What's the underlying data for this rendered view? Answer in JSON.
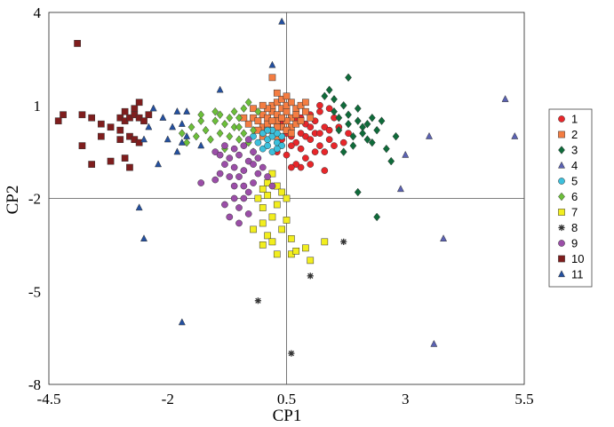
{
  "chart_data": {
    "type": "scatter",
    "xlabel": "CP1",
    "ylabel": "CP2",
    "xlim": [
      -4.5,
      5.5
    ],
    "ylim": [
      -8,
      4
    ],
    "xticks": [
      -4.5,
      -2,
      0.5,
      3,
      5.5
    ],
    "yticks": [
      -8,
      -5,
      -2,
      1,
      4
    ],
    "xtick_labels": [
      "-4.5",
      "-2",
      "0.5",
      "3",
      "5.5"
    ],
    "ytick_labels": [
      "-8",
      "-5",
      "-2",
      "1",
      "4"
    ],
    "reference_lines": {
      "x": 0.5,
      "y": -2
    },
    "grid": false,
    "legend_position": "right",
    "series": [
      {
        "name": "1",
        "marker": "circle",
        "color": "#e8262a",
        "points": [
          [
            0.6,
            0.3
          ],
          [
            0.7,
            0.5
          ],
          [
            0.8,
            0.6
          ],
          [
            0.9,
            0.4
          ],
          [
            1.0,
            0.7
          ],
          [
            1.1,
            0.5
          ],
          [
            1.2,
            0.8
          ],
          [
            1.3,
            0.3
          ],
          [
            0.9,
            0.0
          ],
          [
            1.0,
            -0.1
          ],
          [
            1.1,
            0.1
          ],
          [
            0.7,
            -0.2
          ],
          [
            0.8,
            -0.4
          ],
          [
            0.6,
            -0.3
          ],
          [
            1.2,
            -0.3
          ],
          [
            1.3,
            -0.5
          ],
          [
            1.4,
            0.2
          ],
          [
            1.5,
            0.6
          ],
          [
            1.4,
            0.9
          ],
          [
            1.6,
            0.3
          ],
          [
            1.2,
            0.1
          ],
          [
            0.5,
            0.1
          ],
          [
            0.4,
            -0.1
          ],
          [
            0.6,
            0.0
          ],
          [
            0.9,
            -0.7
          ],
          [
            1.0,
            -0.9
          ],
          [
            0.8,
            -1.0
          ],
          [
            1.1,
            -0.5
          ],
          [
            0.7,
            -0.9
          ],
          [
            1.3,
            -1.1
          ],
          [
            1.5,
            -0.3
          ],
          [
            1.7,
            -0.2
          ],
          [
            1.8,
            0.1
          ],
          [
            1.2,
            1.0
          ],
          [
            0.9,
            0.8
          ],
          [
            0.3,
            -0.5
          ],
          [
            0.5,
            -0.6
          ],
          [
            0.6,
            -1.0
          ],
          [
            1.0,
            0.3
          ],
          [
            1.4,
            -0.1
          ],
          [
            0.4,
            0.4
          ],
          [
            0.8,
            0.1
          ]
        ]
      },
      {
        "name": "2",
        "marker": "square",
        "color": "#f47d42",
        "points": [
          [
            -0.2,
            0.6
          ],
          [
            -0.1,
            0.5
          ],
          [
            0.0,
            0.7
          ],
          [
            0.1,
            0.6
          ],
          [
            0.2,
            0.8
          ],
          [
            0.3,
            0.7
          ],
          [
            0.4,
            0.9
          ],
          [
            0.5,
            0.8
          ],
          [
            0.6,
            0.6
          ],
          [
            0.7,
            0.9
          ],
          [
            0.8,
            1.0
          ],
          [
            0.9,
            0.8
          ],
          [
            0.0,
            0.3
          ],
          [
            0.1,
            0.4
          ],
          [
            0.2,
            0.2
          ],
          [
            0.3,
            0.5
          ],
          [
            0.4,
            0.3
          ],
          [
            0.5,
            0.5
          ],
          [
            0.6,
            0.3
          ],
          [
            0.7,
            0.4
          ],
          [
            0.8,
            0.5
          ],
          [
            0.2,
            1.0
          ],
          [
            0.3,
            1.1
          ],
          [
            0.4,
            1.2
          ],
          [
            0.5,
            1.0
          ],
          [
            -0.3,
            0.4
          ],
          [
            -0.4,
            0.6
          ],
          [
            0.1,
            0.9
          ],
          [
            0.6,
            1.1
          ],
          [
            0.7,
            0.7
          ],
          [
            0.2,
            0.5
          ],
          [
            0.4,
            0.6
          ],
          [
            0.3,
            0.3
          ],
          [
            0.5,
            0.2
          ],
          [
            0.1,
            0.2
          ],
          [
            -0.1,
            0.2
          ],
          [
            0.0,
            0.0
          ],
          [
            0.3,
            0.0
          ],
          [
            1.0,
            0.6
          ],
          [
            0.9,
            1.1
          ],
          [
            0.5,
            1.3
          ],
          [
            0.3,
            1.4
          ],
          [
            0.0,
            1.0
          ],
          [
            -0.2,
            0.9
          ],
          [
            0.6,
            0.1
          ],
          [
            0.2,
            1.9
          ]
        ]
      },
      {
        "name": "3",
        "marker": "diamond",
        "color": "#0f6b3a",
        "points": [
          [
            1.5,
            1.2
          ],
          [
            1.7,
            1.0
          ],
          [
            1.8,
            0.7
          ],
          [
            2.0,
            0.5
          ],
          [
            2.1,
            0.3
          ],
          [
            1.9,
            0.0
          ],
          [
            1.6,
            0.2
          ],
          [
            1.4,
            1.5
          ],
          [
            1.8,
            1.9
          ],
          [
            1.3,
            1.3
          ],
          [
            2.2,
            0.4
          ],
          [
            2.4,
            0.2
          ],
          [
            2.3,
            0.6
          ],
          [
            2.5,
            0.5
          ],
          [
            2.0,
            0.9
          ],
          [
            1.6,
            0.6
          ],
          [
            1.9,
            -0.3
          ],
          [
            2.2,
            -0.1
          ],
          [
            2.6,
            -0.4
          ],
          [
            2.7,
            -0.8
          ],
          [
            2.0,
            -1.8
          ],
          [
            2.4,
            -2.6
          ],
          [
            1.7,
            -0.5
          ],
          [
            2.1,
            0.1
          ],
          [
            1.5,
            0.8
          ],
          [
            2.8,
            0.0
          ],
          [
            1.8,
            0.4
          ],
          [
            2.3,
            -0.2
          ]
        ]
      },
      {
        "name": "4",
        "marker": "triangle",
        "color": "#5b62b3",
        "points": [
          [
            5.1,
            1.2
          ],
          [
            5.3,
            0.0
          ],
          [
            3.5,
            0.0
          ],
          [
            3.0,
            -0.6
          ],
          [
            2.9,
            -1.7
          ],
          [
            3.8,
            -3.3
          ],
          [
            3.6,
            -6.7
          ]
        ]
      },
      {
        "name": "5",
        "marker": "circle",
        "color": "#3cc0dc",
        "points": [
          [
            0.0,
            0.1
          ],
          [
            0.1,
            -0.1
          ],
          [
            0.2,
            0.0
          ],
          [
            0.3,
            -0.2
          ],
          [
            0.4,
            0.0
          ],
          [
            0.0,
            -0.4
          ],
          [
            0.2,
            -0.5
          ],
          [
            0.1,
            -0.3
          ],
          [
            0.3,
            0.1
          ],
          [
            -0.1,
            -0.2
          ],
          [
            0.4,
            -0.3
          ],
          [
            0.2,
            0.2
          ],
          [
            -0.2,
            0.0
          ],
          [
            0.1,
            0.2
          ],
          [
            0.3,
            -0.4
          ]
        ]
      },
      {
        "name": "6",
        "marker": "diamond",
        "color": "#6cbf3a",
        "points": [
          [
            -1.5,
            0.3
          ],
          [
            -1.3,
            0.5
          ],
          [
            -1.2,
            0.2
          ],
          [
            -1.0,
            0.5
          ],
          [
            -0.9,
            0.1
          ],
          [
            -0.8,
            0.4
          ],
          [
            -0.7,
            0.0
          ],
          [
            -0.6,
            0.3
          ],
          [
            -0.5,
            0.6
          ],
          [
            -0.4,
            0.1
          ],
          [
            -0.3,
            -0.2
          ],
          [
            -0.2,
            0.2
          ],
          [
            -1.1,
            -0.1
          ],
          [
            -0.9,
            0.7
          ],
          [
            -0.6,
            0.8
          ],
          [
            -0.4,
            0.9
          ],
          [
            -0.3,
            1.1
          ],
          [
            -0.1,
            0.8
          ],
          [
            -1.4,
            0.0
          ],
          [
            -1.6,
            -0.2
          ],
          [
            -0.8,
            -0.4
          ],
          [
            -0.5,
            -0.1
          ],
          [
            -1.0,
            0.8
          ],
          [
            -0.2,
            -0.5
          ],
          [
            -1.3,
            0.7
          ],
          [
            -0.7,
            0.6
          ],
          [
            -0.5,
            0.3
          ],
          [
            -1.7,
            0.1
          ]
        ]
      },
      {
        "name": "7",
        "marker": "square",
        "color": "#f2ee1e",
        "points": [
          [
            -0.1,
            -2.0
          ],
          [
            0.0,
            -2.3
          ],
          [
            0.1,
            -1.9
          ],
          [
            0.2,
            -2.6
          ],
          [
            0.3,
            -2.2
          ],
          [
            0.0,
            -2.8
          ],
          [
            -0.2,
            -3.0
          ],
          [
            0.1,
            -3.2
          ],
          [
            0.2,
            -3.4
          ],
          [
            0.4,
            -3.0
          ],
          [
            0.5,
            -2.7
          ],
          [
            0.0,
            -3.5
          ],
          [
            0.3,
            -3.8
          ],
          [
            0.6,
            -3.3
          ],
          [
            0.1,
            -1.5
          ],
          [
            0.2,
            -1.2
          ],
          [
            0.3,
            -1.6
          ],
          [
            0.4,
            -1.8
          ],
          [
            0.5,
            -2.0
          ],
          [
            0.6,
            -3.8
          ],
          [
            0.7,
            -3.7
          ],
          [
            1.0,
            -4.0
          ],
          [
            1.3,
            -3.4
          ],
          [
            0.9,
            -3.6
          ],
          [
            0.0,
            -1.7
          ]
        ]
      },
      {
        "name": "8",
        "marker": "asterisk",
        "color": "#333333",
        "points": [
          [
            1.7,
            -3.4
          ],
          [
            1.0,
            -4.5
          ],
          [
            -0.1,
            -5.3
          ],
          [
            0.6,
            -7.0
          ]
        ]
      },
      {
        "name": "9",
        "marker": "circle",
        "color": "#9b4ea8",
        "points": [
          [
            -1.3,
            -1.5
          ],
          [
            -1.0,
            -1.4
          ],
          [
            -0.9,
            -1.2
          ],
          [
            -0.8,
            -0.9
          ],
          [
            -0.7,
            -0.7
          ],
          [
            -0.6,
            -1.0
          ],
          [
            -0.5,
            -1.3
          ],
          [
            -0.4,
            -1.6
          ],
          [
            -0.3,
            -1.8
          ],
          [
            -0.2,
            -1.5
          ],
          [
            -0.1,
            -1.2
          ],
          [
            0.0,
            -1.0
          ],
          [
            -0.5,
            -0.6
          ],
          [
            -0.4,
            -0.3
          ],
          [
            -0.3,
            -0.8
          ],
          [
            -0.2,
            -0.5
          ],
          [
            -0.6,
            -0.4
          ],
          [
            -0.7,
            -1.3
          ],
          [
            -0.8,
            -2.2
          ],
          [
            -0.6,
            -2.0
          ],
          [
            -0.5,
            -2.3
          ],
          [
            -0.4,
            -2.0
          ],
          [
            -0.3,
            -2.5
          ],
          [
            -0.5,
            -2.8
          ],
          [
            -0.7,
            -2.6
          ],
          [
            -1.0,
            -0.5
          ],
          [
            -0.9,
            -0.6
          ],
          [
            -0.8,
            -0.3
          ],
          [
            -0.3,
            -0.1
          ],
          [
            -0.1,
            -0.7
          ],
          [
            0.1,
            -1.3
          ],
          [
            0.2,
            -1.6
          ],
          [
            -0.6,
            -1.6
          ],
          [
            -0.4,
            -1.1
          ],
          [
            -0.2,
            -0.9
          ]
        ]
      },
      {
        "name": "10",
        "marker": "square",
        "color": "#7f1d1d",
        "points": [
          [
            -3.9,
            3.0
          ],
          [
            -4.3,
            0.5
          ],
          [
            -4.2,
            0.7
          ],
          [
            -3.8,
            0.7
          ],
          [
            -3.6,
            0.6
          ],
          [
            -3.4,
            0.4
          ],
          [
            -3.2,
            0.3
          ],
          [
            -3.0,
            0.6
          ],
          [
            -2.9,
            0.5
          ],
          [
            -2.8,
            0.6
          ],
          [
            -2.7,
            0.7
          ],
          [
            -2.6,
            0.6
          ],
          [
            -2.5,
            0.5
          ],
          [
            -2.7,
            0.9
          ],
          [
            -2.6,
            1.1
          ],
          [
            -3.4,
            0.0
          ],
          [
            -3.0,
            -0.1
          ],
          [
            -2.8,
            0.0
          ],
          [
            -2.7,
            -0.1
          ],
          [
            -3.8,
            -0.3
          ],
          [
            -3.6,
            -0.9
          ],
          [
            -3.2,
            -0.8
          ],
          [
            -2.9,
            -0.7
          ],
          [
            -2.8,
            -1.0
          ],
          [
            -2.6,
            -0.2
          ],
          [
            -3.0,
            0.2
          ],
          [
            -2.4,
            0.7
          ],
          [
            -2.9,
            0.8
          ]
        ]
      },
      {
        "name": "11",
        "marker": "triangle",
        "color": "#2450a0",
        "points": [
          [
            0.4,
            3.7
          ],
          [
            0.2,
            2.3
          ],
          [
            -0.9,
            1.5
          ],
          [
            -2.3,
            0.9
          ],
          [
            -1.8,
            0.8
          ],
          [
            -1.6,
            0.8
          ],
          [
            -2.1,
            0.6
          ],
          [
            -1.7,
            0.4
          ],
          [
            -1.9,
            0.3
          ],
          [
            -2.4,
            0.3
          ],
          [
            -1.6,
            0.0
          ],
          [
            -2.0,
            -0.1
          ],
          [
            -1.7,
            -0.2
          ],
          [
            -2.5,
            -0.1
          ],
          [
            -2.2,
            -0.9
          ],
          [
            -1.8,
            -0.5
          ],
          [
            -1.3,
            -0.3
          ],
          [
            -2.6,
            -2.3
          ],
          [
            -2.5,
            -3.3
          ],
          [
            -1.7,
            -6.0
          ]
        ]
      }
    ]
  }
}
